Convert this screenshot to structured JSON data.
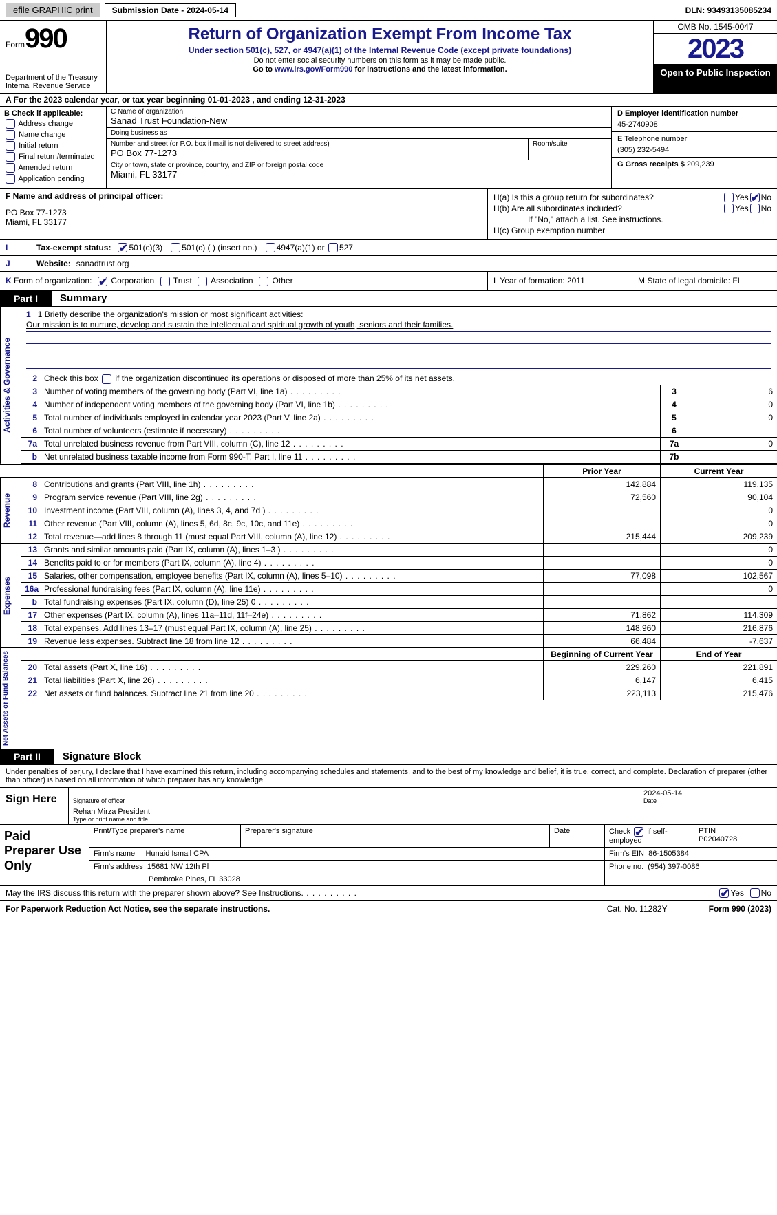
{
  "topbar": {
    "efile": "efile GRAPHIC print",
    "submission": "Submission Date - 2024-05-14",
    "dln": "DLN: 93493135085234"
  },
  "header": {
    "form_label": "Form",
    "form_number": "990",
    "title": "Return of Organization Exempt From Income Tax",
    "sub": "Under section 501(c), 527, or 4947(a)(1) of the Internal Revenue Code (except private foundations)",
    "note1": "Do not enter social security numbers on this form as it may be made public.",
    "note2_a": "Go to ",
    "note2_link": "www.irs.gov/Form990",
    "note2_b": " for instructions and the latest information.",
    "dept": "Department of the Treasury\nInternal Revenue Service",
    "omb": "OMB No. 1545-0047",
    "year": "2023",
    "open": "Open to Public Inspection"
  },
  "row_a": "A For the 2023 calendar year, or tax year beginning 01-01-2023   , and ending 12-31-2023",
  "col_b": {
    "title": "B Check if applicable:",
    "items": [
      "Address change",
      "Name change",
      "Initial return",
      "Final return/terminated",
      "Amended return",
      "Application pending"
    ]
  },
  "col_c": {
    "name_label": "C Name of organization",
    "name": "Sanad Trust Foundation-New",
    "dba_label": "Doing business as",
    "dba": "",
    "addr_label": "Number and street (or P.O. box if mail is not delivered to street address)",
    "addr": "PO Box 77-1273",
    "room_label": "Room/suite",
    "city_label": "City or town, state or province, country, and ZIP or foreign postal code",
    "city": "Miami, FL  33177"
  },
  "col_d": {
    "ein_label": "D Employer identification number",
    "ein": "45-2740908",
    "phone_label": "E Telephone number",
    "phone": "(305) 232-5494",
    "gross_label": "G Gross receipts $",
    "gross": "209,239"
  },
  "col_f": {
    "label": "F  Name and address of principal officer:",
    "line1": "PO Box 77-1273",
    "line2": "Miami, FL  33177"
  },
  "col_h": {
    "ha": "H(a)  Is this a group return for subordinates?",
    "hb": "H(b)  Are all subordinates included?",
    "hb_note": "If \"No,\" attach a list. See instructions.",
    "hc": "H(c)  Group exemption number",
    "yes": "Yes",
    "no": "No"
  },
  "row_i": {
    "lbl": "I",
    "text": "Tax-exempt status:",
    "opt1": "501(c)(3)",
    "opt2": "501(c) (  ) (insert no.)",
    "opt3": "4947(a)(1) or",
    "opt4": "527"
  },
  "row_j": {
    "lbl": "J",
    "text": "Website:",
    "val": "sanadtrust.org"
  },
  "row_k": {
    "lbl": "K",
    "text": "Form of organization:",
    "opts": [
      "Corporation",
      "Trust",
      "Association",
      "Other"
    ]
  },
  "row_l": {
    "text": "L Year of formation: 2011"
  },
  "row_m": {
    "text": "M State of legal domicile: FL"
  },
  "part1": {
    "tab": "Part I",
    "title": "Summary"
  },
  "governance": {
    "label": "Activities & Governance",
    "line1_label": "1  Briefly describe the organization's mission or most significant activities:",
    "mission": "Our mission is to nurture, develop and sustain the intellectual and spiritual growth of youth, seniors and their families.",
    "line2": "Check this box       if the organization discontinued its operations or disposed of more than 25% of its net assets.",
    "rows": [
      {
        "n": "3",
        "desc": "Number of voting members of the governing body (Part VI, line 1a)",
        "box": "3",
        "val": "6"
      },
      {
        "n": "4",
        "desc": "Number of independent voting members of the governing body (Part VI, line 1b)",
        "box": "4",
        "val": "0"
      },
      {
        "n": "5",
        "desc": "Total number of individuals employed in calendar year 2023 (Part V, line 2a)",
        "box": "5",
        "val": "0"
      },
      {
        "n": "6",
        "desc": "Total number of volunteers (estimate if necessary)",
        "box": "6",
        "val": ""
      },
      {
        "n": "7a",
        "desc": "Total unrelated business revenue from Part VIII, column (C), line 12",
        "box": "7a",
        "val": "0"
      },
      {
        "n": "b",
        "desc": "Net unrelated business taxable income from Form 990-T, Part I, line 11",
        "box": "7b",
        "val": ""
      }
    ]
  },
  "pycy_header": {
    "py": "Prior Year",
    "cy": "Current Year"
  },
  "revenue": {
    "label": "Revenue",
    "rows": [
      {
        "n": "8",
        "desc": "Contributions and grants (Part VIII, line 1h)",
        "py": "142,884",
        "cy": "119,135"
      },
      {
        "n": "9",
        "desc": "Program service revenue (Part VIII, line 2g)",
        "py": "72,560",
        "cy": "90,104"
      },
      {
        "n": "10",
        "desc": "Investment income (Part VIII, column (A), lines 3, 4, and 7d )",
        "py": "",
        "cy": "0"
      },
      {
        "n": "11",
        "desc": "Other revenue (Part VIII, column (A), lines 5, 6d, 8c, 9c, 10c, and 11e)",
        "py": "",
        "cy": "0"
      },
      {
        "n": "12",
        "desc": "Total revenue—add lines 8 through 11 (must equal Part VIII, column (A), line 12)",
        "py": "215,444",
        "cy": "209,239"
      }
    ]
  },
  "expenses": {
    "label": "Expenses",
    "rows": [
      {
        "n": "13",
        "desc": "Grants and similar amounts paid (Part IX, column (A), lines 1–3 )",
        "py": "",
        "cy": "0"
      },
      {
        "n": "14",
        "desc": "Benefits paid to or for members (Part IX, column (A), line 4)",
        "py": "",
        "cy": "0"
      },
      {
        "n": "15",
        "desc": "Salaries, other compensation, employee benefits (Part IX, column (A), lines 5–10)",
        "py": "77,098",
        "cy": "102,567"
      },
      {
        "n": "16a",
        "desc": "Professional fundraising fees (Part IX, column (A), line 11e)",
        "py": "",
        "cy": "0"
      },
      {
        "n": "b",
        "desc": "Total fundraising expenses (Part IX, column (D), line 25) 0",
        "py": "shade",
        "cy": "shade"
      },
      {
        "n": "17",
        "desc": "Other expenses (Part IX, column (A), lines 11a–11d, 11f–24e)",
        "py": "71,862",
        "cy": "114,309"
      },
      {
        "n": "18",
        "desc": "Total expenses. Add lines 13–17 (must equal Part IX, column (A), line 25)",
        "py": "148,960",
        "cy": "216,876"
      },
      {
        "n": "19",
        "desc": "Revenue less expenses. Subtract line 18 from line 12",
        "py": "66,484",
        "cy": "-7,637"
      }
    ]
  },
  "netassets": {
    "label": "Net Assets or Fund Balances",
    "header": {
      "py": "Beginning of Current Year",
      "cy": "End of Year"
    },
    "rows": [
      {
        "n": "20",
        "desc": "Total assets (Part X, line 16)",
        "py": "229,260",
        "cy": "221,891"
      },
      {
        "n": "21",
        "desc": "Total liabilities (Part X, line 26)",
        "py": "6,147",
        "cy": "6,415"
      },
      {
        "n": "22",
        "desc": "Net assets or fund balances. Subtract line 21 from line 20",
        "py": "223,113",
        "cy": "215,476"
      }
    ]
  },
  "part2": {
    "tab": "Part II",
    "title": "Signature Block"
  },
  "sig_text": "Under penalties of perjury, I declare that I have examined this return, including accompanying schedules and statements, and to the best of my knowledge and belief, it is true, correct, and complete. Declaration of preparer (other than officer) is based on all information of which preparer has any knowledge.",
  "sign": {
    "left": "Sign Here",
    "sig_label": "Signature of officer",
    "date": "2024-05-14",
    "date_label": "Date",
    "name": "Rehan Mirza  President",
    "name_label": "Type or print name and title"
  },
  "preparer": {
    "left": "Paid Preparer Use Only",
    "h1": "Print/Type preparer's name",
    "h2": "Preparer's signature",
    "h3": "Date",
    "h4_a": "Check",
    "h4_b": "if self-employed",
    "h5": "PTIN",
    "ptin": "P02040728",
    "firm_name_label": "Firm's name",
    "firm_name": "Hunaid Ismail CPA",
    "firm_ein_label": "Firm's EIN",
    "firm_ein": "86-1505384",
    "firm_addr_label": "Firm's address",
    "firm_addr1": "15681 NW 12th Pl",
    "firm_addr2": "Pembroke Pines, FL  33028",
    "phone_label": "Phone no.",
    "phone": "(954) 397-0086"
  },
  "discuss": "May the IRS discuss this return with the preparer shown above? See Instructions.",
  "discuss_yes": "Yes",
  "discuss_no": "No",
  "footer": {
    "left": "For Paperwork Reduction Act Notice, see the separate instructions.",
    "cat": "Cat. No. 11282Y",
    "right": "Form 990 (2023)"
  }
}
